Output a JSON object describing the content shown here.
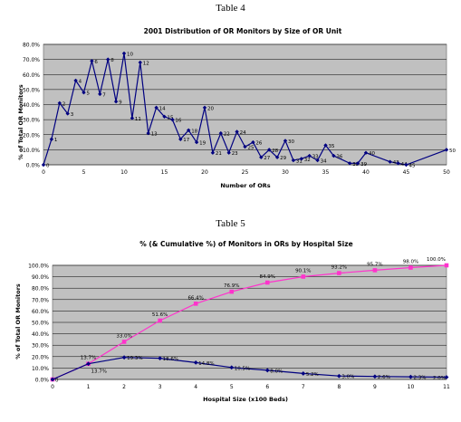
{
  "tables": [
    {
      "caption": "Table 4"
    },
    {
      "caption": "Table 5"
    }
  ],
  "chart_data": [
    {
      "type": "line",
      "title": "2001 Distribution of OR Monitors by Size of OR Unit",
      "xlabel": "Number of ORs",
      "ylabel": "% of Total OR Monitors",
      "xlim": [
        0,
        50
      ],
      "ylim": [
        0,
        0.8
      ],
      "x_ticks": [
        0,
        5,
        10,
        15,
        20,
        25,
        30,
        35,
        40,
        45,
        50
      ],
      "y_ticks": [
        "0.0%",
        "10.0%",
        "20.0%",
        "30.0%",
        "40.0%",
        "50.0%",
        "60.0%",
        "70.0%",
        "80.0%"
      ],
      "grid": true,
      "color": "#000080",
      "series": [
        {
          "points": [
            {
              "x": 0,
              "y": 0.0,
              "label": "0"
            },
            {
              "x": 1,
              "y": 0.17,
              "label": "1"
            },
            {
              "x": 2,
              "y": 0.41,
              "label": "2"
            },
            {
              "x": 3,
              "y": 0.34,
              "label": "3"
            },
            {
              "x": 4,
              "y": 0.56,
              "label": "4"
            },
            {
              "x": 5,
              "y": 0.48,
              "label": "5"
            },
            {
              "x": 6,
              "y": 0.69,
              "label": "6"
            },
            {
              "x": 7,
              "y": 0.47,
              "label": "7"
            },
            {
              "x": 8,
              "y": 0.7,
              "label": "8"
            },
            {
              "x": 9,
              "y": 0.42,
              "label": "9"
            },
            {
              "x": 10,
              "y": 0.74,
              "label": "10"
            },
            {
              "x": 11,
              "y": 0.31,
              "label": "11"
            },
            {
              "x": 12,
              "y": 0.68,
              "label": "12"
            },
            {
              "x": 13,
              "y": 0.21,
              "label": "13"
            },
            {
              "x": 14,
              "y": 0.38,
              "label": "14"
            },
            {
              "x": 15,
              "y": 0.32,
              "label": "15"
            },
            {
              "x": 16,
              "y": 0.3,
              "label": "16"
            },
            {
              "x": 17,
              "y": 0.17,
              "label": "17"
            },
            {
              "x": 18,
              "y": 0.23,
              "label": "18"
            },
            {
              "x": 19,
              "y": 0.15,
              "label": "19"
            },
            {
              "x": 20,
              "y": 0.38,
              "label": "20"
            },
            {
              "x": 21,
              "y": 0.08,
              "label": "21"
            },
            {
              "x": 22,
              "y": 0.21,
              "label": "22"
            },
            {
              "x": 23,
              "y": 0.08,
              "label": "23"
            },
            {
              "x": 24,
              "y": 0.22,
              "label": "24"
            },
            {
              "x": 25,
              "y": 0.12,
              "label": "25"
            },
            {
              "x": 26,
              "y": 0.15,
              "label": "26"
            },
            {
              "x": 27,
              "y": 0.05,
              "label": "27"
            },
            {
              "x": 28,
              "y": 0.1,
              "label": "28"
            },
            {
              "x": 29,
              "y": 0.05,
              "label": "29"
            },
            {
              "x": 30,
              "y": 0.16,
              "label": "30"
            },
            {
              "x": 31,
              "y": 0.03,
              "label": "31"
            },
            {
              "x": 32,
              "y": 0.04,
              "label": "32"
            },
            {
              "x": 33,
              "y": 0.06,
              "label": "33"
            },
            {
              "x": 34,
              "y": 0.03,
              "label": "34"
            },
            {
              "x": 35,
              "y": 0.13,
              "label": "35"
            },
            {
              "x": 36,
              "y": 0.06,
              "label": "36"
            },
            {
              "x": 38,
              "y": 0.01,
              "label": "38"
            },
            {
              "x": 39,
              "y": 0.01,
              "label": "39"
            },
            {
              "x": 40,
              "y": 0.08,
              "label": "40"
            },
            {
              "x": 43,
              "y": 0.02,
              "label": "43"
            },
            {
              "x": 44,
              "y": 0.01,
              "label": "44"
            },
            {
              "x": 45,
              "y": 0.0,
              "label": "45"
            },
            {
              "x": 50,
              "y": 0.1,
              "label": "50"
            }
          ]
        }
      ]
    },
    {
      "type": "line",
      "title": "% (& Cumulative %) of Monitors in ORs by Hospital Size",
      "xlabel": "Hospital Size (x100 Beds)",
      "ylabel": "% of Total OR Monitors",
      "xlim": [
        0,
        11
      ],
      "ylim": [
        0,
        1.0
      ],
      "x_ticks": [
        0,
        1,
        2,
        3,
        4,
        5,
        6,
        7,
        8,
        9,
        10,
        11
      ],
      "y_ticks": [
        "0.0%",
        "10.0%",
        "20.0%",
        "30.0%",
        "40.0%",
        "50.0%",
        "60.0%",
        "70.0%",
        "80.0%",
        "90.0%",
        "100.0%"
      ],
      "grid": true,
      "series": [
        {
          "color": "#ff33cc",
          "marker": "square",
          "points": [
            {
              "x": 0,
              "y": 0.0,
              "label": ""
            },
            {
              "x": 1,
              "y": 0.137,
              "label": "13.7%"
            },
            {
              "x": 2,
              "y": 0.33,
              "label": "33.0%"
            },
            {
              "x": 3,
              "y": 0.516,
              "label": "51.6%"
            },
            {
              "x": 4,
              "y": 0.664,
              "label": "66.4%"
            },
            {
              "x": 5,
              "y": 0.769,
              "label": "76.9%"
            },
            {
              "x": 6,
              "y": 0.849,
              "label": "84.9%"
            },
            {
              "x": 7,
              "y": 0.901,
              "label": "90.1%"
            },
            {
              "x": 8,
              "y": 0.932,
              "label": "93.2%"
            },
            {
              "x": 9,
              "y": 0.957,
              "label": "95.7%"
            },
            {
              "x": 10,
              "y": 0.98,
              "label": "98.0%"
            },
            {
              "x": 11,
              "y": 1.0,
              "label": "100.0%"
            }
          ]
        },
        {
          "color": "#000080",
          "marker": "diamond",
          "points": [
            {
              "x": 0,
              "y": 0.0,
              "label": "0"
            },
            {
              "x": 1,
              "y": 0.137,
              "label": "13.7%"
            },
            {
              "x": 2,
              "y": 0.193,
              "label": "19.3%"
            },
            {
              "x": 3,
              "y": 0.186,
              "label": "18.6%"
            },
            {
              "x": 4,
              "y": 0.148,
              "label": "14.8%"
            },
            {
              "x": 5,
              "y": 0.105,
              "label": "10.5%"
            },
            {
              "x": 6,
              "y": 0.08,
              "label": "8.0%"
            },
            {
              "x": 7,
              "y": 0.052,
              "label": "5.2%"
            },
            {
              "x": 8,
              "y": 0.03,
              "label": "3.0%"
            },
            {
              "x": 9,
              "y": 0.026,
              "label": "2.6%"
            },
            {
              "x": 10,
              "y": 0.023,
              "label": "2.3%"
            },
            {
              "x": 11,
              "y": 0.02,
              "label": "2.0%"
            }
          ]
        }
      ]
    }
  ]
}
